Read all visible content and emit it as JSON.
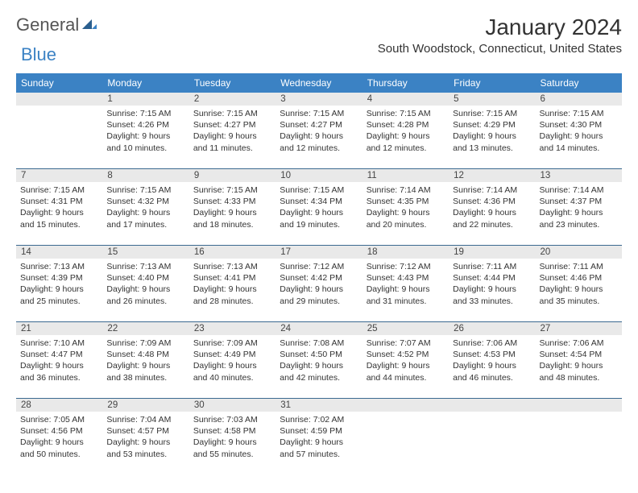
{
  "brand": {
    "text1": "General",
    "text2": "Blue"
  },
  "title": "January 2024",
  "location": "South Woodstock, Connecticut, United States",
  "colors": {
    "header_bg": "#3b82c4",
    "header_text": "#ffffff",
    "daynum_bg": "#e9e9e9",
    "row_border": "#3b6a90",
    "text": "#333333"
  },
  "day_names": [
    "Sunday",
    "Monday",
    "Tuesday",
    "Wednesday",
    "Thursday",
    "Friday",
    "Saturday"
  ],
  "weeks": [
    [
      null,
      {
        "n": "1",
        "sr": "7:15 AM",
        "ss": "4:26 PM",
        "dl": "9 hours and 10 minutes."
      },
      {
        "n": "2",
        "sr": "7:15 AM",
        "ss": "4:27 PM",
        "dl": "9 hours and 11 minutes."
      },
      {
        "n": "3",
        "sr": "7:15 AM",
        "ss": "4:27 PM",
        "dl": "9 hours and 12 minutes."
      },
      {
        "n": "4",
        "sr": "7:15 AM",
        "ss": "4:28 PM",
        "dl": "9 hours and 12 minutes."
      },
      {
        "n": "5",
        "sr": "7:15 AM",
        "ss": "4:29 PM",
        "dl": "9 hours and 13 minutes."
      },
      {
        "n": "6",
        "sr": "7:15 AM",
        "ss": "4:30 PM",
        "dl": "9 hours and 14 minutes."
      }
    ],
    [
      {
        "n": "7",
        "sr": "7:15 AM",
        "ss": "4:31 PM",
        "dl": "9 hours and 15 minutes."
      },
      {
        "n": "8",
        "sr": "7:15 AM",
        "ss": "4:32 PM",
        "dl": "9 hours and 17 minutes."
      },
      {
        "n": "9",
        "sr": "7:15 AM",
        "ss": "4:33 PM",
        "dl": "9 hours and 18 minutes."
      },
      {
        "n": "10",
        "sr": "7:15 AM",
        "ss": "4:34 PM",
        "dl": "9 hours and 19 minutes."
      },
      {
        "n": "11",
        "sr": "7:14 AM",
        "ss": "4:35 PM",
        "dl": "9 hours and 20 minutes."
      },
      {
        "n": "12",
        "sr": "7:14 AM",
        "ss": "4:36 PM",
        "dl": "9 hours and 22 minutes."
      },
      {
        "n": "13",
        "sr": "7:14 AM",
        "ss": "4:37 PM",
        "dl": "9 hours and 23 minutes."
      }
    ],
    [
      {
        "n": "14",
        "sr": "7:13 AM",
        "ss": "4:39 PM",
        "dl": "9 hours and 25 minutes."
      },
      {
        "n": "15",
        "sr": "7:13 AM",
        "ss": "4:40 PM",
        "dl": "9 hours and 26 minutes."
      },
      {
        "n": "16",
        "sr": "7:13 AM",
        "ss": "4:41 PM",
        "dl": "9 hours and 28 minutes."
      },
      {
        "n": "17",
        "sr": "7:12 AM",
        "ss": "4:42 PM",
        "dl": "9 hours and 29 minutes."
      },
      {
        "n": "18",
        "sr": "7:12 AM",
        "ss": "4:43 PM",
        "dl": "9 hours and 31 minutes."
      },
      {
        "n": "19",
        "sr": "7:11 AM",
        "ss": "4:44 PM",
        "dl": "9 hours and 33 minutes."
      },
      {
        "n": "20",
        "sr": "7:11 AM",
        "ss": "4:46 PM",
        "dl": "9 hours and 35 minutes."
      }
    ],
    [
      {
        "n": "21",
        "sr": "7:10 AM",
        "ss": "4:47 PM",
        "dl": "9 hours and 36 minutes."
      },
      {
        "n": "22",
        "sr": "7:09 AM",
        "ss": "4:48 PM",
        "dl": "9 hours and 38 minutes."
      },
      {
        "n": "23",
        "sr": "7:09 AM",
        "ss": "4:49 PM",
        "dl": "9 hours and 40 minutes."
      },
      {
        "n": "24",
        "sr": "7:08 AM",
        "ss": "4:50 PM",
        "dl": "9 hours and 42 minutes."
      },
      {
        "n": "25",
        "sr": "7:07 AM",
        "ss": "4:52 PM",
        "dl": "9 hours and 44 minutes."
      },
      {
        "n": "26",
        "sr": "7:06 AM",
        "ss": "4:53 PM",
        "dl": "9 hours and 46 minutes."
      },
      {
        "n": "27",
        "sr": "7:06 AM",
        "ss": "4:54 PM",
        "dl": "9 hours and 48 minutes."
      }
    ],
    [
      {
        "n": "28",
        "sr": "7:05 AM",
        "ss": "4:56 PM",
        "dl": "9 hours and 50 minutes."
      },
      {
        "n": "29",
        "sr": "7:04 AM",
        "ss": "4:57 PM",
        "dl": "9 hours and 53 minutes."
      },
      {
        "n": "30",
        "sr": "7:03 AM",
        "ss": "4:58 PM",
        "dl": "9 hours and 55 minutes."
      },
      {
        "n": "31",
        "sr": "7:02 AM",
        "ss": "4:59 PM",
        "dl": "9 hours and 57 minutes."
      },
      null,
      null,
      null
    ]
  ],
  "labels": {
    "sunrise": "Sunrise:",
    "sunset": "Sunset:",
    "daylight": "Daylight:"
  }
}
